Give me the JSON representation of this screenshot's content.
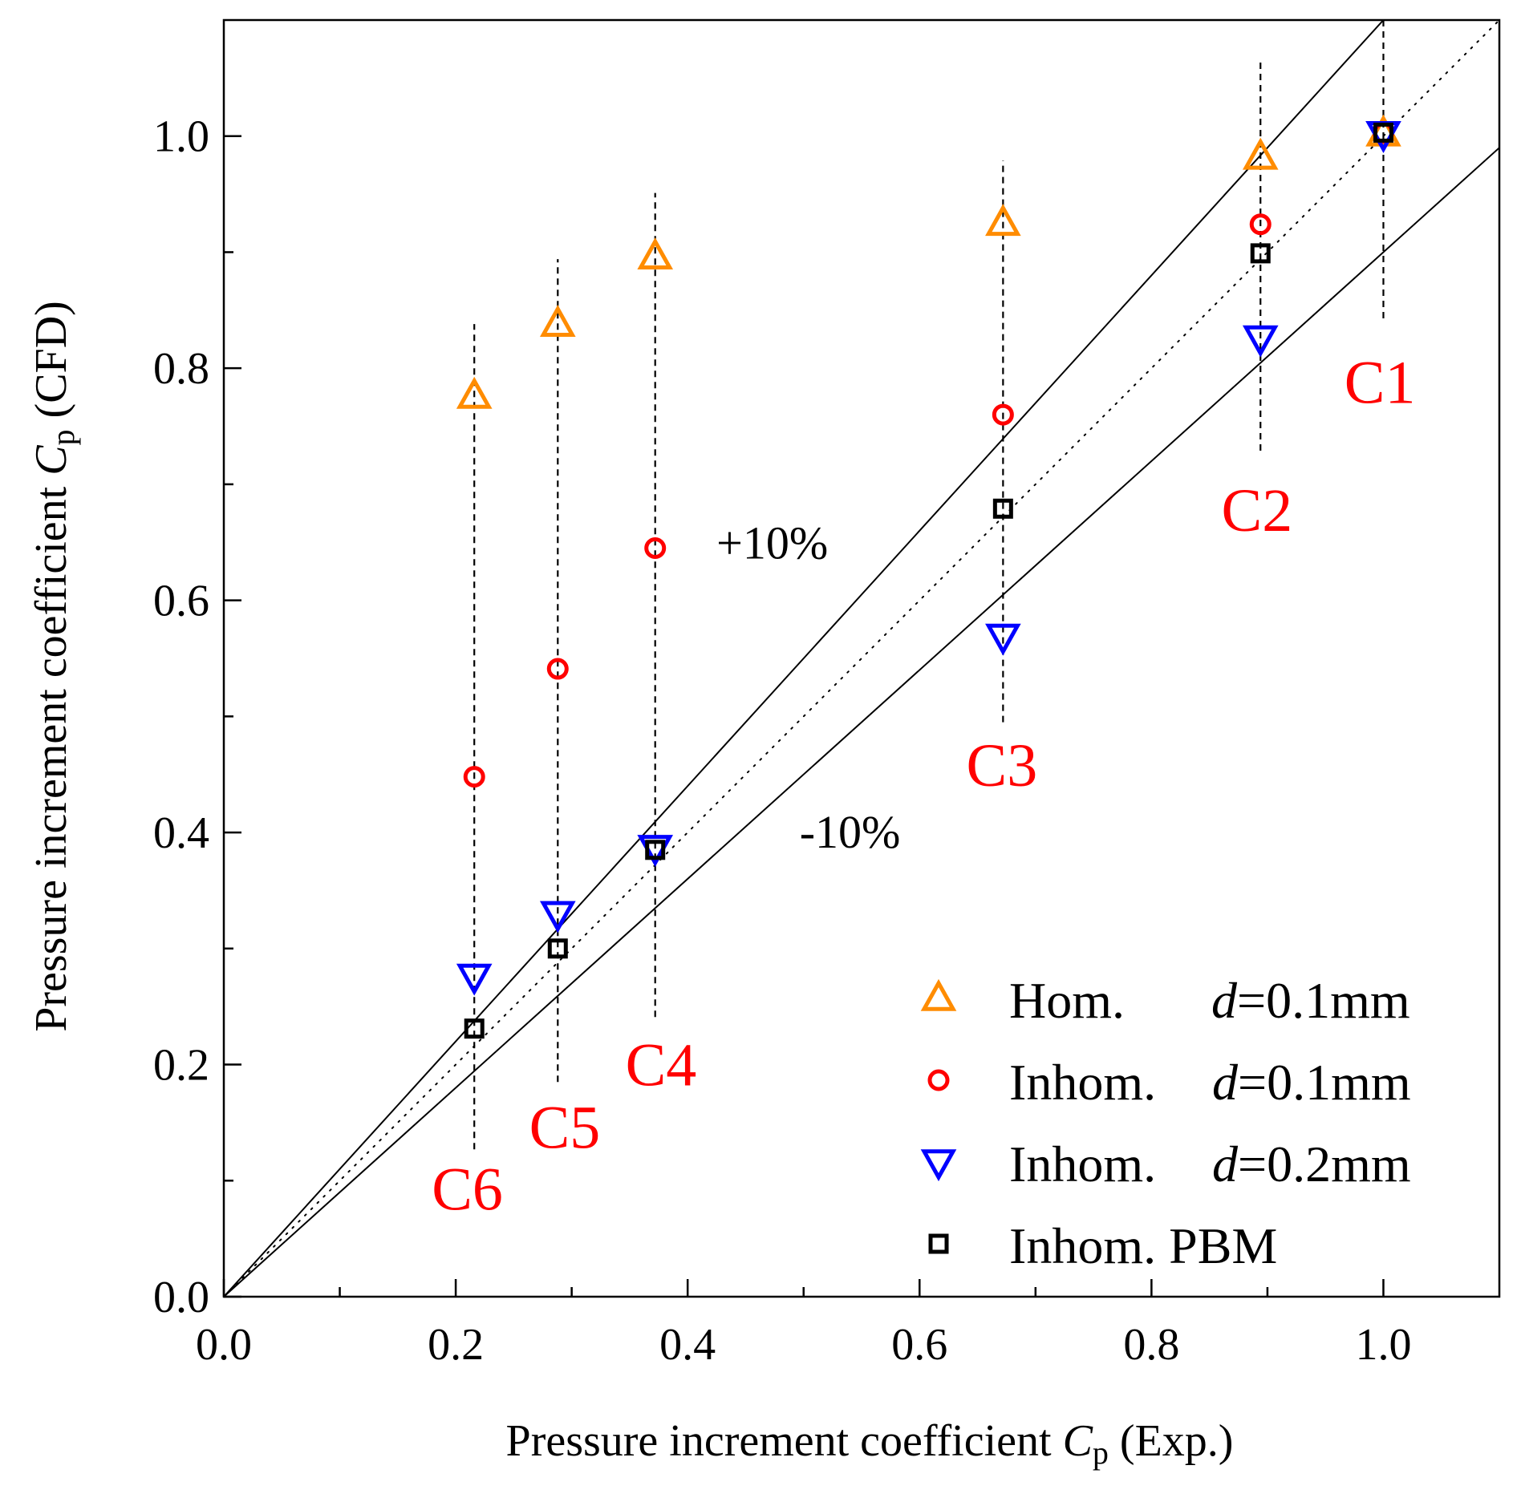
{
  "chart_data": {
    "type": "scatter",
    "title": "",
    "xlabel": {
      "prefix": "Pressure increment coefficient ",
      "symbol": "C",
      "subscript": "p",
      "suffix": " (Exp.)"
    },
    "ylabel": {
      "prefix": "Pressure increment coefficient ",
      "symbol": "C",
      "subscript": "p",
      "suffix": " (CFD)"
    },
    "xlim": [
      0.0,
      1.1
    ],
    "ylim": [
      0.0,
      1.1
    ],
    "major_ticks": [
      0.0,
      0.2,
      0.4,
      0.6,
      0.8,
      1.0
    ],
    "minor_ticks": [
      0.1,
      0.3,
      0.5,
      0.7,
      0.9
    ],
    "major_tick_labels": [
      "0.0",
      "0.2",
      "0.4",
      "0.6",
      "0.8",
      "1.0"
    ],
    "grid": false,
    "legend_position": "bottom-right",
    "series": [
      {
        "name": "Hom.",
        "d_symbol": "d",
        "d_value": "=0.1mm",
        "marker": "triangle-up",
        "color": "#FF8C00",
        "x": [
          0.216,
          0.288,
          0.372,
          0.672,
          0.894,
          1.0
        ],
        "y": [
          0.776,
          0.838,
          0.896,
          0.925,
          0.982,
          1.002
        ]
      },
      {
        "name": "Inhom.",
        "d_symbol": "d",
        "d_value": "=0.1mm",
        "marker": "circle",
        "color": "#FF0000",
        "x": [
          0.216,
          0.288,
          0.372,
          0.672,
          0.894,
          1.0
        ],
        "y": [
          0.448,
          0.541,
          0.645,
          0.76,
          0.924,
          1.003
        ]
      },
      {
        "name": "Inhom.",
        "d_symbol": "d",
        "d_value": "=0.2mm",
        "marker": "triangle-down",
        "color": "#0000FF",
        "x": [
          0.216,
          0.288,
          0.372,
          0.672,
          0.894,
          1.0
        ],
        "y": [
          0.276,
          0.33,
          0.387,
          0.569,
          0.826,
          1.002
        ]
      },
      {
        "name": "Inhom. PBM",
        "d_symbol": "",
        "d_value": "",
        "marker": "square",
        "color": "#000000",
        "x": [
          0.216,
          0.288,
          0.372,
          0.672,
          0.894,
          1.0
        ],
        "y": [
          0.231,
          0.3,
          0.385,
          0.679,
          0.899,
          1.003
        ]
      }
    ],
    "reference_lines": [
      {
        "name": "+10%",
        "slope": 1.1,
        "style": "solid",
        "color": "#000000"
      },
      {
        "name": "parity",
        "slope": 1.0,
        "style": "dotted",
        "color": "#000000"
      },
      {
        "name": "-10%",
        "slope": 0.9,
        "style": "solid",
        "color": "#000000"
      }
    ],
    "case_ranges": [
      {
        "x": 0.216,
        "y_min": 0.127,
        "y_max": 0.838
      },
      {
        "x": 0.288,
        "y_min": 0.185,
        "y_max": 0.894
      },
      {
        "x": 0.372,
        "y_min": 0.241,
        "y_max": 0.951
      },
      {
        "x": 0.672,
        "y_min": 0.495,
        "y_max": 0.979
      },
      {
        "x": 0.894,
        "y_min": 0.729,
        "y_max": 1.066
      },
      {
        "x": 1.0,
        "y_min": 0.843,
        "y_max": 1.1
      }
    ],
    "annotations": [
      {
        "text": "C1",
        "x": 0.997,
        "y": 0.77,
        "color": "#FF0000"
      },
      {
        "text": "C2",
        "x": 0.891,
        "y": 0.66,
        "color": "#FF0000"
      },
      {
        "text": "C3",
        "x": 0.671,
        "y": 0.44,
        "color": "#FF0000"
      },
      {
        "text": "C4",
        "x": 0.377,
        "y": 0.182,
        "color": "#FF0000"
      },
      {
        "text": "C5",
        "x": 0.294,
        "y": 0.128,
        "color": "#FF0000"
      },
      {
        "text": "C6",
        "x": 0.21,
        "y": 0.075,
        "color": "#FF0000"
      },
      {
        "text": "+10%",
        "x": 0.473,
        "y": 0.636,
        "color": "#000000"
      },
      {
        "text": "-10%",
        "x": 0.54,
        "y": 0.387,
        "color": "#000000"
      }
    ]
  }
}
